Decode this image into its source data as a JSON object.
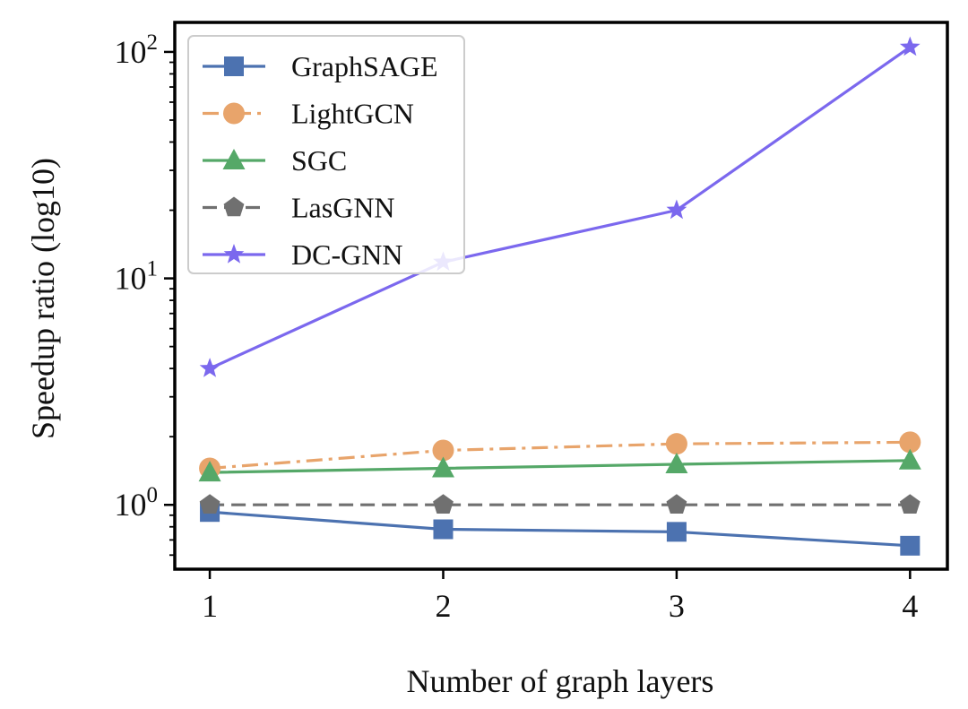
{
  "chart_data": {
    "type": "line",
    "xlabel": "Number of graph layers",
    "ylabel": "Speedup ratio (log10)",
    "x": [
      1,
      2,
      3,
      4
    ],
    "x_ticks": [
      {
        "value": 1,
        "label": "1"
      },
      {
        "value": 2,
        "label": "2"
      },
      {
        "value": 3,
        "label": "3"
      },
      {
        "value": 4,
        "label": "4"
      }
    ],
    "xlim": [
      0.85,
      4.16
    ],
    "y_scale": "log10",
    "ylim": [
      0.52,
      135
    ],
    "y_ticks": [
      {
        "value": 1,
        "base": "10",
        "exp": "0"
      },
      {
        "value": 10,
        "base": "10",
        "exp": "1"
      },
      {
        "value": 100,
        "base": "10",
        "exp": "2"
      }
    ],
    "legend_position": "top-left",
    "series": [
      {
        "name": "GraphSAGE",
        "color": "#4c72b0",
        "marker": "square",
        "dash": "solid",
        "values": [
          0.93,
          0.78,
          0.76,
          0.66
        ]
      },
      {
        "name": "LightGCN",
        "color": "#e8a46b",
        "marker": "circle",
        "dash": "dashdot",
        "values": [
          1.45,
          1.74,
          1.86,
          1.89
        ]
      },
      {
        "name": "SGC",
        "color": "#55a868",
        "marker": "triangle",
        "dash": "solid",
        "values": [
          1.39,
          1.45,
          1.51,
          1.57
        ]
      },
      {
        "name": "LasGNN",
        "color": "#707070",
        "marker": "pentagon",
        "dash": "dashed",
        "values": [
          1.0,
          1.0,
          1.0,
          1.0
        ]
      },
      {
        "name": "DC-GNN",
        "color": "#7b68ee",
        "marker": "star",
        "dash": "solid",
        "values": [
          4.0,
          11.8,
          20.0,
          105
        ]
      }
    ]
  }
}
